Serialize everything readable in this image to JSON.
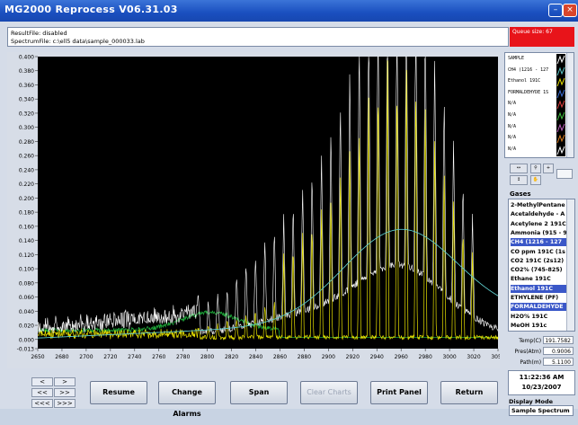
{
  "window": {
    "title": "MG2000 Reprocess   V06.31.03"
  },
  "info": {
    "result_file": "ResultFile: disabled",
    "spectrum_file": "SpectrumFile: c:\\ell5 data\\sample_000033.lab",
    "queue": "Queue size: 67"
  },
  "chart_data": {
    "type": "line",
    "xlim": [
      2650,
      3050
    ],
    "ylim": [
      -0.013,
      0.4
    ],
    "x_ticks": [
      "2650",
      "2680",
      "2700",
      "2720",
      "2740",
      "2760",
      "2780",
      "2800",
      "2820",
      "2840",
      "2860",
      "2880",
      "2900",
      "2920",
      "2940",
      "2960",
      "2980",
      "3000",
      "3020",
      "3050"
    ],
    "y_ticks": [
      "0.400",
      "0.380",
      "0.360",
      "0.340",
      "0.320",
      "0.300",
      "0.280",
      "0.260",
      "0.240",
      "0.220",
      "0.200",
      "0.180",
      "0.160",
      "0.140",
      "0.120",
      "0.100",
      "0.080",
      "0.060",
      "0.040",
      "0.020",
      "0.000",
      "-0.013"
    ],
    "grid": false,
    "series_colors": [
      "#ffffff",
      "#e6e000",
      "#5cc8c8",
      "#1fa83a"
    ]
  },
  "legend": {
    "items": [
      "SAMPLE",
      "CH4 (1216 - 127",
      "Ethanol 191C",
      "FORMALDEHYDE 1S",
      "N/A",
      "N/A",
      "N/A",
      "N/A",
      "N/A"
    ]
  },
  "gases": {
    "label": "Gases",
    "items": [
      {
        "name": "2-MethylPentane",
        "selected": false
      },
      {
        "name": "Acetaldehyde - A",
        "selected": false
      },
      {
        "name": "Acetylene 2 191C",
        "selected": false
      },
      {
        "name": "Ammonia (915 - 9",
        "selected": false
      },
      {
        "name": "CH4 (1216 - 127",
        "selected": true
      },
      {
        "name": "CO ppm 191C (1s",
        "selected": false
      },
      {
        "name": "CO2 191C (2s12)",
        "selected": false
      },
      {
        "name": "CO2% (745-825)",
        "selected": false
      },
      {
        "name": "Ethane 191C",
        "selected": false
      },
      {
        "name": "Ethanol 191C",
        "selected": true
      },
      {
        "name": "ETHYLENE (PF)",
        "selected": false
      },
      {
        "name": "FORMALDEHYDE",
        "selected": true
      },
      {
        "name": "H2O% 191C",
        "selected": false
      },
      {
        "name": "MeOH  191c",
        "selected": false
      }
    ]
  },
  "params": {
    "temp_label": "Temp(C)",
    "temp": "191.7582",
    "pres_label": "Pres(Atm)",
    "pres": "0.9006",
    "path_label": "Path(m)",
    "path": "5.1100"
  },
  "clock": {
    "time": "11:22:36 AM",
    "date": "10/23/2007"
  },
  "display_mode": {
    "label": "Display Mode",
    "value": "Sample Spectrum"
  },
  "buttons": {
    "resume": "Resume",
    "change_alarms": "Change Alarms",
    "span": "Span",
    "clear_charts": "Clear Charts",
    "print_panel": "Print Panel",
    "return": "Return"
  },
  "nav": {
    "left": "<",
    "right": ">",
    "left2": "<<",
    "right2": ">>",
    "left3": "<<<",
    "right3": ">>>"
  }
}
